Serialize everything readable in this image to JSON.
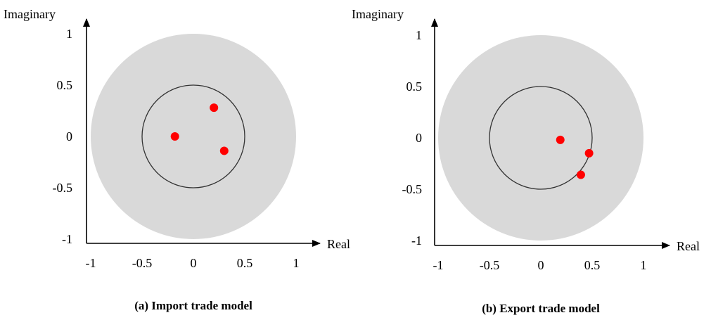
{
  "chart_data": [
    {
      "type": "scatter",
      "caption": "(a) Import trade model",
      "xlabel": "Real",
      "ylabel": "Imaginary",
      "xticks": [
        "-1",
        "-0.5",
        "0",
        "0.5",
        "1"
      ],
      "yticks": [
        "1",
        "0.5",
        "0",
        "-0.5",
        "-1"
      ],
      "xlim": [
        -1.1,
        1.1
      ],
      "ylim": [
        -1.1,
        1.1
      ],
      "outer_disk_radius": 1.0,
      "unit_circle_radius": 0.5,
      "colors": {
        "disk": "#d9d9d9",
        "circle": "#333333",
        "points": "#ff0000"
      },
      "series": [
        {
          "x": [
            0.2,
            -0.18,
            0.3
          ],
          "y": [
            0.28,
            0.0,
            -0.14
          ]
        }
      ]
    },
    {
      "type": "scatter",
      "caption": "(b) Export trade model",
      "xlabel": "Real",
      "ylabel": "Imaginary",
      "xticks": [
        "-1",
        "-0.5",
        "0",
        "0.5",
        "1"
      ],
      "yticks": [
        "1",
        "0.5",
        "0",
        "-0.5",
        "-1"
      ],
      "xlim": [
        -1.1,
        1.1
      ],
      "ylim": [
        -1.1,
        1.1
      ],
      "outer_disk_radius": 1.0,
      "unit_circle_radius": 0.5,
      "colors": {
        "disk": "#d9d9d9",
        "circle": "#333333",
        "points": "#ff0000"
      },
      "series": [
        {
          "x": [
            0.19,
            0.47,
            0.39
          ],
          "y": [
            -0.02,
            -0.15,
            -0.36
          ]
        }
      ]
    }
  ]
}
